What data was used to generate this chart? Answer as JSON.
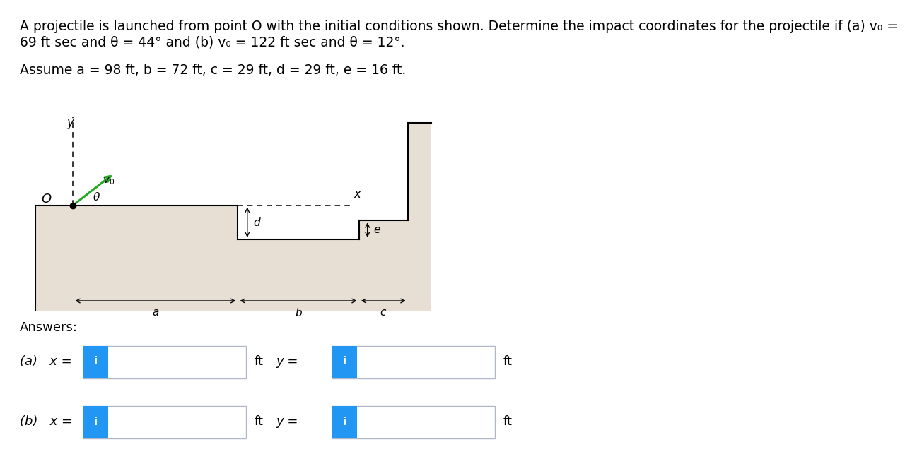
{
  "title_line1": "A projectile is launched from point O with the initial conditions shown. Determine the impact coordinates for the projectile if (a) v₀ =",
  "title_line2": "69 ft sec and θ = 44° and (b) v₀ = 122 ft sec and θ = 12°.",
  "assume_line": "Assume a = 98 ft, b = 72 ft, c = 29 ft, d = 29 ft, e = 16 ft.",
  "answers_label": "Answers:",
  "part_a_label": "(a)   x =",
  "part_b_label": "(b)   x =",
  "terrain_color": "#e8dfd4",
  "terrain_edge": "#000000",
  "arrow_green": "#22aa22",
  "blue_box": "#2196F3",
  "box_border": "#b0b8c8",
  "scale_a": 3.5,
  "a_ft": 98,
  "b_ft": 72,
  "c_ft": 29,
  "d_ft": 29,
  "e_ft": 16
}
